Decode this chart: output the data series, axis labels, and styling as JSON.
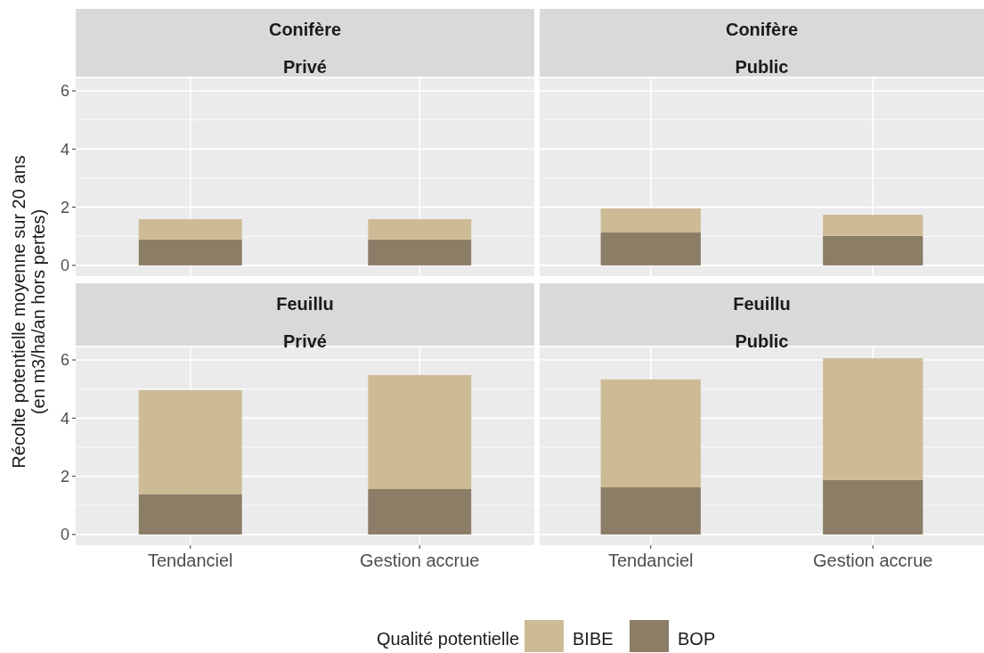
{
  "chart_data": [
    {
      "type": "bar",
      "stacked": true,
      "title": "Conifère",
      "subtitle": "Privé",
      "ylabel": "Récolte potentielle moyenne sur 20 ans\n(en m3/ha/an hors pertes)",
      "categories": [
        "Tendanciel",
        "Gestion accrue"
      ],
      "series": [
        {
          "name": "BOP",
          "color": "#8b7d66",
          "values": [
            0.89,
            0.89
          ]
        },
        {
          "name": "BIBE",
          "color": "#cdbb96",
          "values": [
            0.7,
            0.7
          ]
        }
      ],
      "ylim": [
        -0.37,
        6.43
      ],
      "yticks": [
        0,
        2,
        4,
        6
      ],
      "grid": true,
      "tick_labels": "y",
      "legend": "bottom",
      "legend_title": "Qualité potentielle"
    },
    {
      "type": "bar",
      "stacked": true,
      "title": "Conifère",
      "subtitle": "Public",
      "categories": [
        "Tendanciel",
        "Gestion accrue"
      ],
      "series": [
        {
          "name": "BOP",
          "color": "#8b7d66",
          "values": [
            1.13,
            1.01
          ]
        },
        {
          "name": "BIBE",
          "color": "#cdbb96",
          "values": [
            0.83,
            0.73
          ]
        }
      ],
      "ylim": [
        -0.37,
        6.43
      ],
      "yticks": [
        0,
        2,
        4,
        6
      ],
      "grid": true,
      "tick_labels": false
    },
    {
      "type": "bar",
      "stacked": true,
      "title": "Feuillu",
      "subtitle": "Privé",
      "categories": [
        "Tendanciel",
        "Gestion accrue"
      ],
      "series": [
        {
          "name": "BOP",
          "color": "#8b7d66",
          "values": [
            1.38,
            1.56
          ]
        },
        {
          "name": "BIBE",
          "color": "#cdbb96",
          "values": [
            3.58,
            3.92
          ]
        }
      ],
      "ylim": [
        -0.37,
        6.43
      ],
      "yticks": [
        0,
        2,
        4,
        6
      ],
      "grid": true
    },
    {
      "type": "bar",
      "stacked": true,
      "title": "Feuillu",
      "subtitle": "Public",
      "categories": [
        "Tendanciel",
        "Gestion accrue"
      ],
      "series": [
        {
          "name": "BOP",
          "color": "#8b7d66",
          "values": [
            1.62,
            1.87
          ]
        },
        {
          "name": "BIBE",
          "color": "#cdbb96",
          "values": [
            3.71,
            4.19
          ]
        }
      ],
      "ylim": [
        -0.37,
        6.43
      ],
      "yticks": [
        0,
        2,
        4,
        6
      ],
      "grid": true,
      "tick_labels": "x"
    }
  ]
}
